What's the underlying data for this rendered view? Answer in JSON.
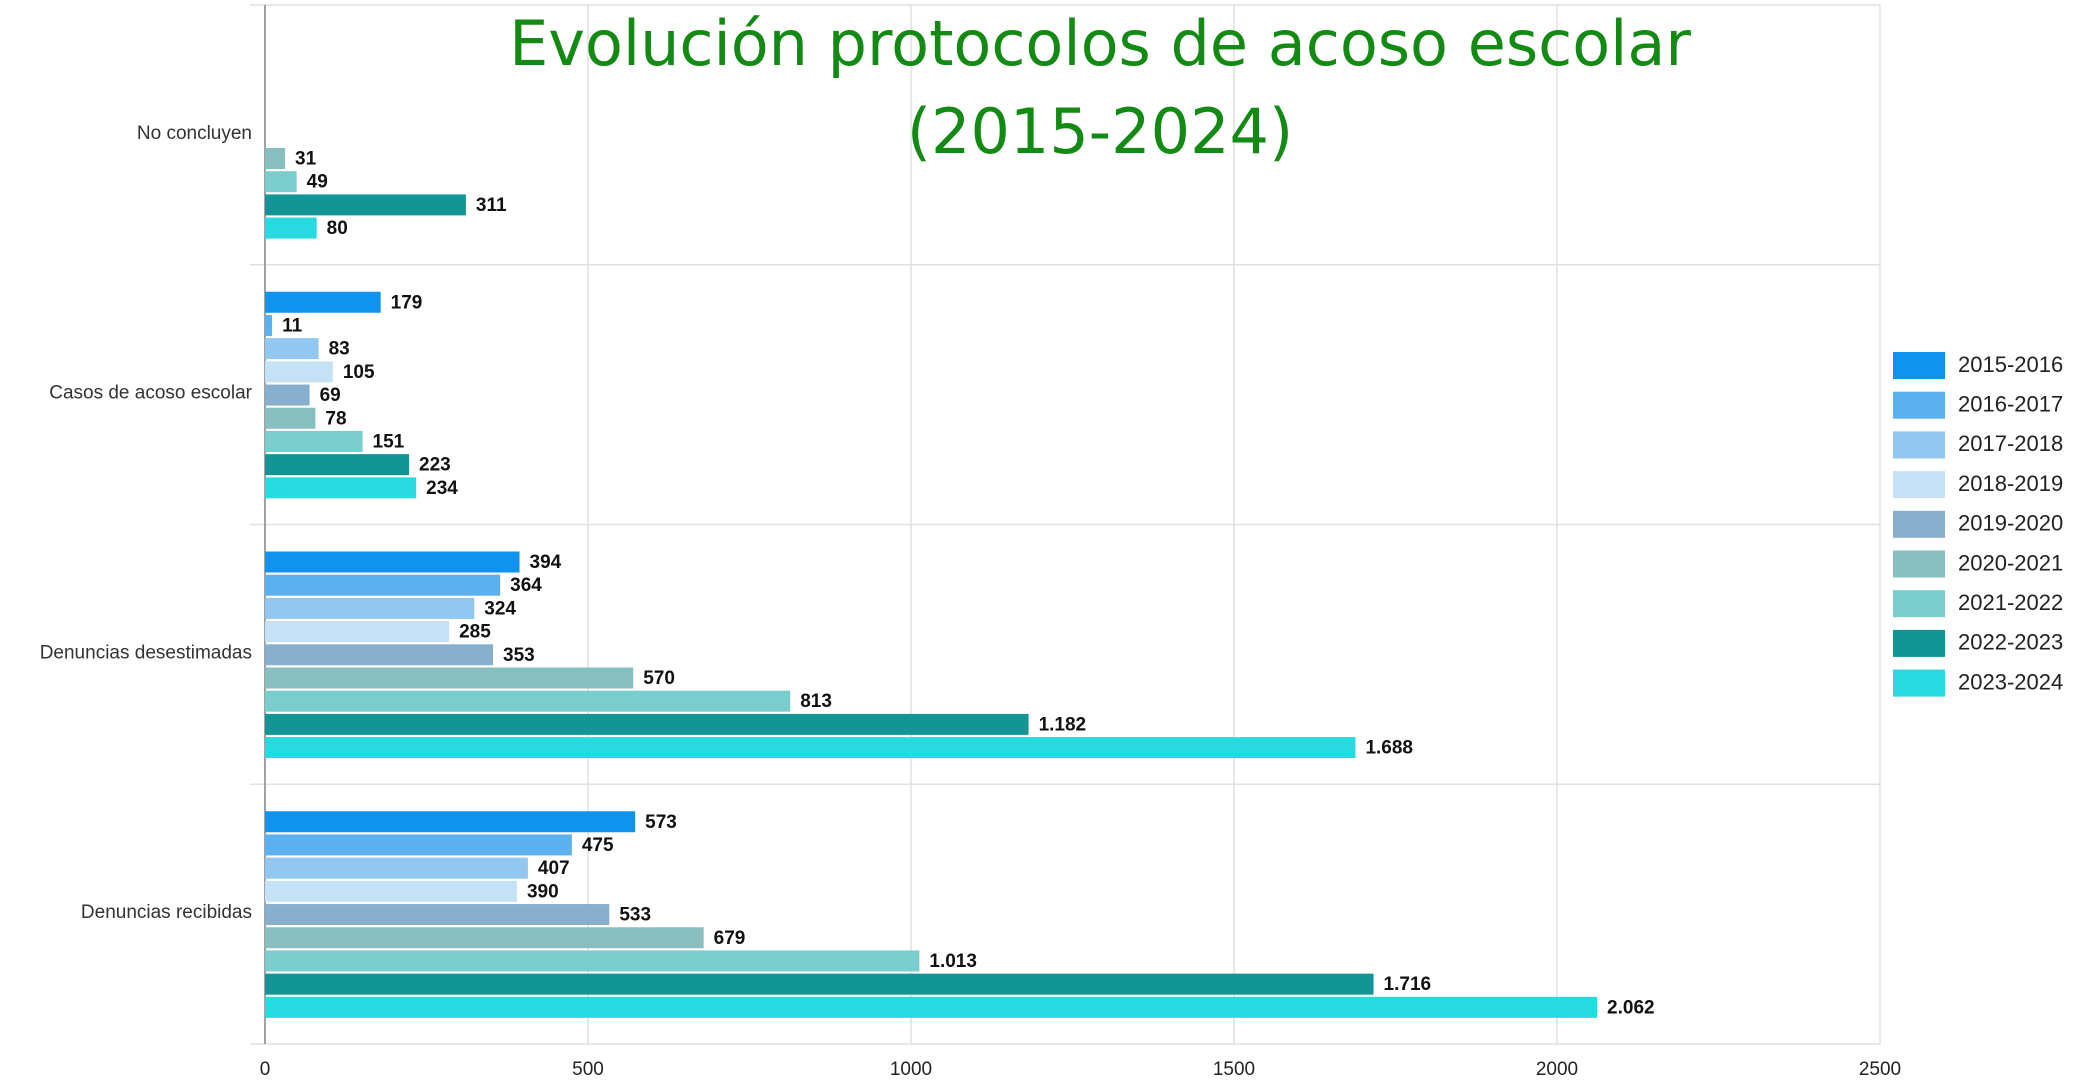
{
  "chart_data": {
    "type": "hbar",
    "title": "Evolución protocolos de acoso escolar (2015-2024)",
    "categories": [
      "No concluyen",
      "Casos de acoso escolar",
      "Denuncias desestimadas",
      "Denuncias recibidas"
    ],
    "series": [
      {
        "name": "2015-2016",
        "color": "#1093ee",
        "values": [
          null,
          179,
          394,
          573
        ],
        "value_labels": [
          null,
          "179",
          "394",
          "573"
        ]
      },
      {
        "name": "2016-2017",
        "color": "#5bb1f0",
        "values": [
          null,
          11,
          364,
          475
        ],
        "value_labels": [
          null,
          "11",
          "364",
          "475"
        ]
      },
      {
        "name": "2017-2018",
        "color": "#92c8ef",
        "values": [
          null,
          83,
          324,
          407
        ],
        "value_labels": [
          null,
          "83",
          "324",
          "407"
        ]
      },
      {
        "name": "2018-2019",
        "color": "#c5e1f5",
        "values": [
          null,
          105,
          285,
          390
        ],
        "value_labels": [
          null,
          "105",
          "285",
          "390"
        ]
      },
      {
        "name": "2019-2020",
        "color": "#88afcd",
        "values": [
          null,
          69,
          353,
          533
        ],
        "value_labels": [
          null,
          "69",
          "353",
          "533"
        ]
      },
      {
        "name": "2020-2021",
        "color": "#88bebd",
        "values": [
          31,
          78,
          570,
          679
        ],
        "value_labels": [
          "31",
          "78",
          "570",
          "679"
        ]
      },
      {
        "name": "2021-2022",
        "color": "#7acdcd",
        "values": [
          49,
          151,
          813,
          1013
        ],
        "value_labels": [
          "49",
          "151",
          "813",
          "1.013"
        ]
      },
      {
        "name": "2022-2023",
        "color": "#149595",
        "values": [
          311,
          223,
          1182,
          1716
        ],
        "value_labels": [
          "311",
          "223",
          "1.182",
          "1.716"
        ]
      },
      {
        "name": "2023-2024",
        "color": "#26dadf",
        "values": [
          80,
          234,
          1688,
          2062
        ],
        "value_labels": [
          "80",
          "234",
          "1.688",
          "2.062"
        ]
      }
    ],
    "xlim": [
      0,
      2500
    ],
    "xticks": [
      0,
      500,
      1000,
      1500,
      2000,
      2500
    ],
    "grid": true,
    "legend": "right"
  }
}
